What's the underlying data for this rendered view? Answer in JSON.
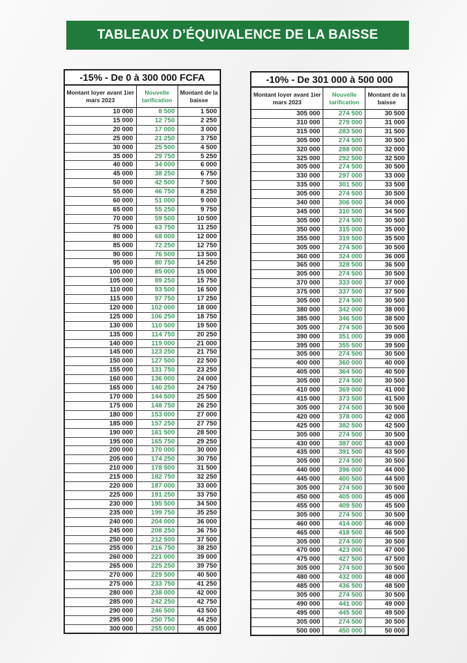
{
  "title": "TABLEAUX D’ÉQUIVALENCE DE LA BAISSE",
  "colors": {
    "banner": "#1f7a3c",
    "new_price": "#3a9a5c"
  },
  "tables": [
    {
      "title": "-15% - De 0 à 300 000 FCFA",
      "headers": [
        "Montant loyer avant 1ier mars 2023",
        "Nouvelle tarification",
        "Montant de la baisse"
      ],
      "rows": [
        [
          "10 000",
          "8 500",
          "1 500"
        ],
        [
          "15 000",
          "12 750",
          "2 250"
        ],
        [
          "20 000",
          "17 000",
          "3 000"
        ],
        [
          "25 000",
          "21 250",
          "3 750"
        ],
        [
          "30 000",
          "25 500",
          "4 500"
        ],
        [
          "35 000",
          "29 750",
          "5 250"
        ],
        [
          "40 000",
          "34 000",
          "6 000"
        ],
        [
          "45 000",
          "38 250",
          "6 750"
        ],
        [
          "50 000",
          "42 500",
          "7 500"
        ],
        [
          "55 000",
          "46 750",
          "8 250"
        ],
        [
          "60 000",
          "51 000",
          "9 000"
        ],
        [
          "65 000",
          "55 250",
          "9 750"
        ],
        [
          "70 000",
          "59 500",
          "10 500"
        ],
        [
          "75 000",
          "63 750",
          "11 250"
        ],
        [
          "80 000",
          "68 000",
          "12 000"
        ],
        [
          "85 000",
          "72 250",
          "12 750"
        ],
        [
          "90 000",
          "76 500",
          "13 500"
        ],
        [
          "95 000",
          "80 750",
          "14 250"
        ],
        [
          "100 000",
          "85 000",
          "15 000"
        ],
        [
          "105 000",
          "89 250",
          "15 750"
        ],
        [
          "110 000",
          "93 500",
          "16 500"
        ],
        [
          "115 000",
          "97 750",
          "17 250"
        ],
        [
          "120 000",
          "102 000",
          "18 000"
        ],
        [
          "125 000",
          "106 250",
          "18 750"
        ],
        [
          "130 000",
          "110 500",
          "19 500"
        ],
        [
          "135 000",
          "114 750",
          "20 250"
        ],
        [
          "140 000",
          "119 000",
          "21 000"
        ],
        [
          "145 000",
          "123 250",
          "21 750"
        ],
        [
          "150 000",
          "127 500",
          "22 500"
        ],
        [
          "155 000",
          "131 750",
          "23 250"
        ],
        [
          "160 000",
          "136 000",
          "24 000"
        ],
        [
          "165 000",
          "140 250",
          "24 750"
        ],
        [
          "170 000",
          "144 500",
          "25 500"
        ],
        [
          "175 000",
          "148 750",
          "26 250"
        ],
        [
          "180 000",
          "153 000",
          "27 000"
        ],
        [
          "185 000",
          "157 250",
          "27 750"
        ],
        [
          "190 000",
          "161 500",
          "28 500"
        ],
        [
          "195 000",
          "165 750",
          "29 250"
        ],
        [
          "200 000",
          "170 000",
          "30 000"
        ],
        [
          "205 000",
          "174 250",
          "30 750"
        ],
        [
          "210 000",
          "178 500",
          "31 500"
        ],
        [
          "215 000",
          "182 750",
          "32 250"
        ],
        [
          "220 000",
          "187 000",
          "33 000"
        ],
        [
          "225 000",
          "191 250",
          "33 750"
        ],
        [
          "230 000",
          "195 500",
          "34 500"
        ],
        [
          "235 000",
          "199 750",
          "35 250"
        ],
        [
          "240 000",
          "204 000",
          "36 000"
        ],
        [
          "245 000",
          "208 250",
          "36 750"
        ],
        [
          "250 000",
          "212 500",
          "37 500"
        ],
        [
          "255 000",
          "216 750",
          "38 250"
        ],
        [
          "260 000",
          "221 000",
          "39 000"
        ],
        [
          "265 000",
          "225 250",
          "39 750"
        ],
        [
          "270 000",
          "229 500",
          "40 500"
        ],
        [
          "275 000",
          "233 750",
          "41 250"
        ],
        [
          "280 000",
          "238 000",
          "42 000"
        ],
        [
          "285 000",
          "242 250",
          "42 750"
        ],
        [
          "290 000",
          "246 500",
          "43 500"
        ],
        [
          "295 000",
          "250 750",
          "44 250"
        ],
        [
          "300 000",
          "255 000",
          "45 000"
        ]
      ]
    },
    {
      "title": "-10% - De 301 000 à 500 000",
      "headers": [
        "Montant loyer avant 1ier mars 2023",
        "Nouvelle tarification",
        "Montant de la baisse"
      ],
      "rows": [
        [
          "305 000",
          "274 500",
          "30 500"
        ],
        [
          "310 000",
          "279 000",
          "31 000"
        ],
        [
          "315 000",
          "283 500",
          "31 500"
        ],
        [
          "305 000",
          "274 500",
          "30 500"
        ],
        [
          "320 000",
          "288 000",
          "32 000"
        ],
        [
          "325 000",
          "292 500",
          "32 500"
        ],
        [
          "305 000",
          "274 500",
          "30 500"
        ],
        [
          "330 000",
          "297 000",
          "33 000"
        ],
        [
          "335 000",
          "301 500",
          "33 500"
        ],
        [
          "305 000",
          "274 500",
          "30 500"
        ],
        [
          "340 000",
          "306 000",
          "34 000"
        ],
        [
          "345 000",
          "310 500",
          "34 500"
        ],
        [
          "305 000",
          "274 500",
          "30 500"
        ],
        [
          "350 000",
          "315 000",
          "35 000"
        ],
        [
          "355 000",
          "319 500",
          "35 500"
        ],
        [
          "305 000",
          "274 500",
          "30 500"
        ],
        [
          "360 000",
          "324 000",
          "36 000"
        ],
        [
          "365 000",
          "328 500",
          "36 500"
        ],
        [
          "305 000",
          "274 500",
          "30 500"
        ],
        [
          "370 000",
          "333 000",
          "37 000"
        ],
        [
          "375 000",
          "337 500",
          "37 500"
        ],
        [
          "305 000",
          "274 500",
          "30 500"
        ],
        [
          "380 000",
          "342 000",
          "38 000"
        ],
        [
          "385 000",
          "346 500",
          "38 500"
        ],
        [
          "305 000",
          "274 500",
          "30 500"
        ],
        [
          "390 000",
          "351 000",
          "39 000"
        ],
        [
          "395 000",
          "355 500",
          "39 500"
        ],
        [
          "305 000",
          "274 500",
          "30 500"
        ],
        [
          "400 000",
          "360 000",
          "40 000"
        ],
        [
          "405 000",
          "364 500",
          "40 500"
        ],
        [
          "305 000",
          "274 500",
          "30 500"
        ],
        [
          "410 000",
          "369 000",
          "41 000"
        ],
        [
          "415 000",
          "373 500",
          "41 500"
        ],
        [
          "305 000",
          "274 500",
          "30 500"
        ],
        [
          "420 000",
          "378 000",
          "42 000"
        ],
        [
          "425 000",
          "382 500",
          "42 500"
        ],
        [
          "305 000",
          "274 500",
          "30 500"
        ],
        [
          "430 000",
          "387 000",
          "43 000"
        ],
        [
          "435 000",
          "391 500",
          "43 500"
        ],
        [
          "305 000",
          "274 500",
          "30 500"
        ],
        [
          "440 000",
          "396 000",
          "44 000"
        ],
        [
          "445 000",
          "400 500",
          "44 500"
        ],
        [
          "305 000",
          "274 500",
          "30 500"
        ],
        [
          "450 000",
          "405 000",
          "45 000"
        ],
        [
          "455 000",
          "409 500",
          "45 500"
        ],
        [
          "305 000",
          "274 500",
          "30 500"
        ],
        [
          "460 000",
          "414 000",
          "46 000"
        ],
        [
          "465 000",
          "418 500",
          "46 500"
        ],
        [
          "305 000",
          "274 500",
          "30 500"
        ],
        [
          "470 000",
          "423 000",
          "47 000"
        ],
        [
          "475 000",
          "427 500",
          "47 500"
        ],
        [
          "305 000",
          "274 500",
          "30 500"
        ],
        [
          "480 000",
          "432 000",
          "48 000"
        ],
        [
          "485 000",
          "436 500",
          "48 500"
        ],
        [
          "305 000",
          "274 500",
          "30 500"
        ],
        [
          "490 000",
          "441 000",
          "49 000"
        ],
        [
          "495 000",
          "445 500",
          "49 500"
        ],
        [
          "305 000",
          "274 500",
          "30 500"
        ],
        [
          "500 000",
          "450 000",
          "50 000"
        ]
      ]
    }
  ]
}
